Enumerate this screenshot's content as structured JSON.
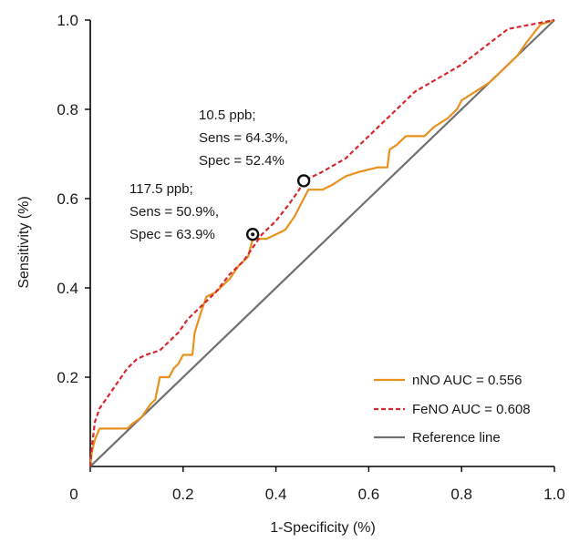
{
  "chart_data": {
    "type": "line",
    "xlabel": "1-Specificity (%)",
    "ylabel": "Sensitivity  (%)",
    "xlim": [
      0,
      1.0
    ],
    "ylim": [
      0,
      1.0
    ],
    "x_ticks": [
      "0",
      "0.2",
      "0.4",
      "0.6",
      "0.8",
      "1.0"
    ],
    "y_ticks": [
      "0.2",
      "0.4",
      "0.6",
      "0.8",
      "1.0"
    ],
    "grid": false,
    "legend_position": "bottom-right",
    "colors": {
      "nno": "#E8911E",
      "feno": "#D7282F",
      "reference": "#707070",
      "axis": "#000000"
    },
    "series": [
      {
        "name": "nNO AUC = 0.556",
        "style": "solid",
        "color": "#E8911E",
        "points": [
          [
            0.0,
            0.0
          ],
          [
            0.003,
            0.03
          ],
          [
            0.01,
            0.06
          ],
          [
            0.02,
            0.085
          ],
          [
            0.04,
            0.085
          ],
          [
            0.08,
            0.085
          ],
          [
            0.09,
            0.095
          ],
          [
            0.11,
            0.11
          ],
          [
            0.13,
            0.14
          ],
          [
            0.14,
            0.15
          ],
          [
            0.15,
            0.2
          ],
          [
            0.17,
            0.2
          ],
          [
            0.18,
            0.22
          ],
          [
            0.19,
            0.23
          ],
          [
            0.2,
            0.25
          ],
          [
            0.22,
            0.25
          ],
          [
            0.225,
            0.3
          ],
          [
            0.24,
            0.35
          ],
          [
            0.25,
            0.38
          ],
          [
            0.27,
            0.39
          ],
          [
            0.3,
            0.42
          ],
          [
            0.32,
            0.45
          ],
          [
            0.34,
            0.47
          ],
          [
            0.35,
            0.51
          ],
          [
            0.38,
            0.51
          ],
          [
            0.4,
            0.52
          ],
          [
            0.42,
            0.53
          ],
          [
            0.44,
            0.56
          ],
          [
            0.46,
            0.6
          ],
          [
            0.47,
            0.62
          ],
          [
            0.48,
            0.62
          ],
          [
            0.5,
            0.62
          ],
          [
            0.52,
            0.63
          ],
          [
            0.55,
            0.65
          ],
          [
            0.58,
            0.66
          ],
          [
            0.62,
            0.67
          ],
          [
            0.64,
            0.67
          ],
          [
            0.645,
            0.71
          ],
          [
            0.66,
            0.72
          ],
          [
            0.68,
            0.74
          ],
          [
            0.72,
            0.74
          ],
          [
            0.74,
            0.76
          ],
          [
            0.77,
            0.78
          ],
          [
            0.79,
            0.8
          ],
          [
            0.8,
            0.82
          ],
          [
            0.83,
            0.84
          ],
          [
            0.86,
            0.86
          ],
          [
            0.88,
            0.88
          ],
          [
            0.9,
            0.9
          ],
          [
            0.92,
            0.92
          ],
          [
            0.94,
            0.95
          ],
          [
            0.955,
            0.97
          ],
          [
            0.97,
            0.99
          ],
          [
            1.0,
            1.0
          ]
        ]
      },
      {
        "name": "FeNO AUC = 0.608",
        "style": "dashed",
        "color": "#D7282F",
        "points": [
          [
            0.0,
            0.0
          ],
          [
            0.003,
            0.04
          ],
          [
            0.01,
            0.1
          ],
          [
            0.02,
            0.13
          ],
          [
            0.04,
            0.16
          ],
          [
            0.06,
            0.19
          ],
          [
            0.08,
            0.22
          ],
          [
            0.1,
            0.24
          ],
          [
            0.12,
            0.25
          ],
          [
            0.15,
            0.26
          ],
          [
            0.17,
            0.28
          ],
          [
            0.19,
            0.3
          ],
          [
            0.21,
            0.33
          ],
          [
            0.24,
            0.36
          ],
          [
            0.27,
            0.39
          ],
          [
            0.3,
            0.43
          ],
          [
            0.33,
            0.46
          ],
          [
            0.35,
            0.49
          ],
          [
            0.37,
            0.52
          ],
          [
            0.4,
            0.55
          ],
          [
            0.43,
            0.59
          ],
          [
            0.45,
            0.62
          ],
          [
            0.46,
            0.64
          ],
          [
            0.5,
            0.66
          ],
          [
            0.55,
            0.69
          ],
          [
            0.6,
            0.74
          ],
          [
            0.65,
            0.79
          ],
          [
            0.7,
            0.84
          ],
          [
            0.75,
            0.87
          ],
          [
            0.8,
            0.9
          ],
          [
            0.85,
            0.94
          ],
          [
            0.9,
            0.98
          ],
          [
            0.95,
            0.99
          ],
          [
            1.0,
            1.0
          ]
        ]
      },
      {
        "name": "Reference line",
        "style": "solid",
        "color": "#707070",
        "points": [
          [
            0.0,
            0.0
          ],
          [
            1.0,
            1.0
          ]
        ]
      }
    ],
    "markers": [
      {
        "x": 0.35,
        "y": 0.52,
        "style": "dotted-circle"
      },
      {
        "x": 0.46,
        "y": 0.64,
        "style": "open-circle"
      }
    ],
    "annotations": [
      {
        "target": 0.46,
        "lines": [
          "10.5 ppb;",
          "Sens = 64.3%,",
          "Spec = 52.4%"
        ]
      },
      {
        "target": 0.35,
        "lines": [
          "117.5 ppb;",
          "Sens = 50.9%,",
          "Spec = 63.9%"
        ]
      }
    ]
  }
}
